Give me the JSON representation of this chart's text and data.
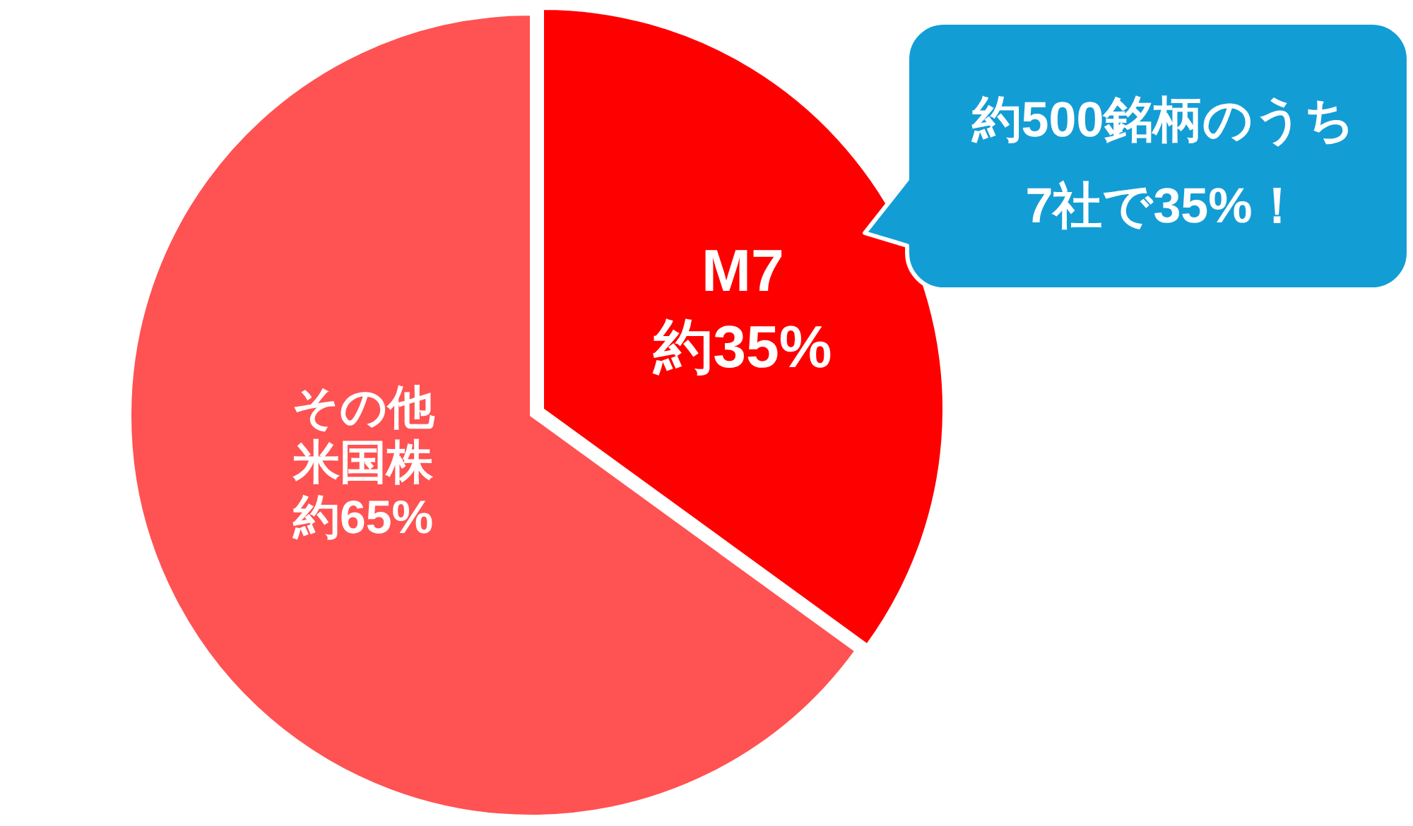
{
  "chart_data": {
    "type": "pie",
    "categories": [
      "M7",
      "その他米国株"
    ],
    "values": [
      35,
      65
    ],
    "colors": [
      "#ff0000",
      "#ff5252"
    ],
    "value_labels": [
      "約35%",
      "約65%"
    ],
    "annotations": [
      "約500銘柄のうち7社で35%！"
    ]
  }
}
